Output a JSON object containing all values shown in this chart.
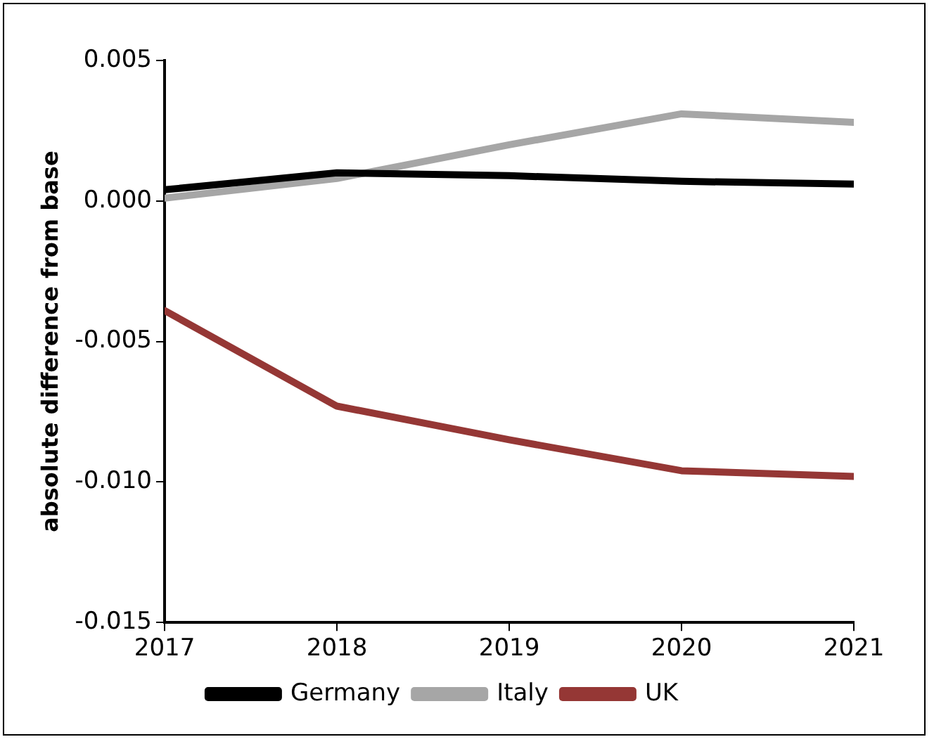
{
  "chart_data": {
    "type": "line",
    "ylabel": "absolute difference from base",
    "x": [
      2017,
      2018,
      2019,
      2020,
      2021
    ],
    "series": [
      {
        "name": "Germany",
        "color": "#000000",
        "values": [
          0.0004,
          0.001,
          0.0009,
          0.0007,
          0.0006
        ]
      },
      {
        "name": "Italy",
        "color": "#a6a6a6",
        "values": [
          0.0001,
          0.0008,
          0.002,
          0.0031,
          0.0028
        ]
      },
      {
        "name": "UK",
        "color": "#953735",
        "values": [
          -0.0039,
          -0.0073,
          -0.0085,
          -0.0096,
          -0.0098
        ]
      }
    ],
    "xlim": [
      2017,
      2021
    ],
    "xticks": [
      2017,
      2018,
      2019,
      2020,
      2021
    ],
    "ylim": [
      -0.015,
      0.005
    ],
    "yticks": [
      {
        "value": -0.015,
        "label": "-0.015"
      },
      {
        "value": -0.01,
        "label": "-0.010"
      },
      {
        "value": -0.005,
        "label": "-0.005"
      },
      {
        "value": 0,
        "label": "0.000"
      },
      {
        "value": 0.005,
        "label": "0.005"
      }
    ],
    "grid": false,
    "legend": "bottom",
    "marker": "none",
    "line_style": "solid"
  }
}
